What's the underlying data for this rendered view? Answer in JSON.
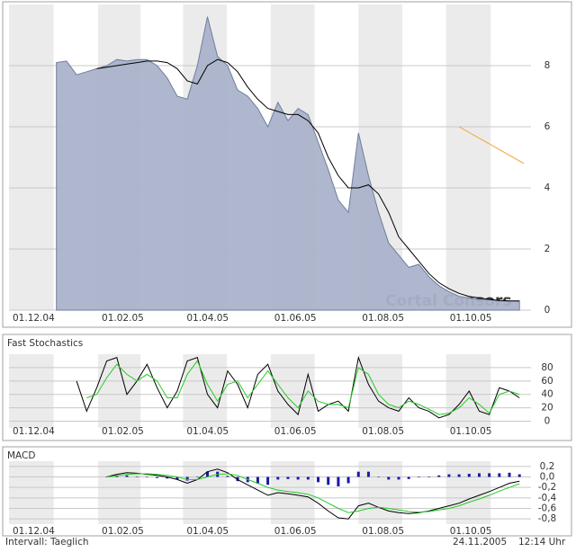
{
  "chart_data": [
    {
      "type": "area",
      "watermark": "Cortal Consors",
      "x": [
        "03.01.05",
        "10.01.05",
        "17.01.05",
        "24.01.05",
        "31.01.05",
        "07.02.05",
        "14.02.05",
        "21.02.05",
        "28.02.05",
        "07.03.05",
        "14.03.05",
        "21.03.05",
        "28.03.05",
        "04.04.05",
        "11.04.05",
        "18.04.05",
        "25.04.05",
        "02.05.05",
        "09.05.05",
        "16.05.05",
        "23.05.05",
        "30.05.05",
        "06.06.05",
        "13.06.05",
        "20.06.05",
        "27.06.05",
        "04.07.05",
        "11.07.05",
        "18.07.05",
        "25.07.05",
        "01.08.05",
        "08.08.05",
        "15.08.05",
        "22.08.05",
        "29.08.05",
        "05.09.05",
        "12.09.05",
        "19.09.05",
        "26.09.05",
        "03.10.05",
        "10.10.05",
        "17.10.05",
        "24.10.05",
        "31.10.05",
        "07.11.05",
        "14.11.05",
        "21.11.05"
      ],
      "series": [
        {
          "type": "area",
          "color": "#aab3ca",
          "line_color": "#6f7e9e",
          "values": [
            8.1,
            8.15,
            7.7,
            7.8,
            7.9,
            8.0,
            8.2,
            8.15,
            8.2,
            8.2,
            8.0,
            7.6,
            7.0,
            6.9,
            8.0,
            9.6,
            8.3,
            8.0,
            7.2,
            7.0,
            6.6,
            6.0,
            6.8,
            6.2,
            6.6,
            6.4,
            5.5,
            4.6,
            3.6,
            3.2,
            5.8,
            4.4,
            3.2,
            2.2,
            1.8,
            1.4,
            1.5,
            1.1,
            0.8,
            0.6,
            0.45,
            0.4,
            0.35,
            0.35,
            0.3,
            0.3,
            0.3
          ]
        },
        {
          "type": "line",
          "color": "#000000",
          "values": [
            null,
            null,
            null,
            null,
            7.9,
            7.95,
            8.0,
            8.05,
            8.1,
            8.15,
            8.15,
            8.1,
            7.9,
            7.5,
            7.4,
            8.0,
            8.2,
            8.1,
            7.8,
            7.3,
            6.9,
            6.6,
            6.5,
            6.4,
            6.4,
            6.2,
            5.8,
            5.0,
            4.4,
            4.0,
            4.0,
            4.1,
            3.8,
            3.2,
            2.4,
            2.0,
            1.6,
            1.2,
            0.9,
            0.7,
            0.55,
            0.45,
            0.4,
            0.35,
            0.32,
            0.3,
            0.3
          ]
        },
        {
          "type": "line",
          "color": "#f5a030",
          "x": [
            "10.10.05",
            "24.11.05"
          ],
          "values": [
            6.0,
            4.8
          ]
        }
      ],
      "xlim": [
        "01.12.04",
        "24.11.05"
      ],
      "xticks": [
        "01.12.04",
        "01.02.05",
        "01.04.05",
        "01.06.05",
        "01.08.05",
        "01.10.05"
      ],
      "ylim": [
        0,
        10
      ],
      "yticks": [
        0,
        2,
        4,
        6,
        8
      ],
      "grid": true
    },
    {
      "type": "line",
      "title": "Fast Stochastics",
      "x": [
        "03.01.05",
        "10.01.05",
        "17.01.05",
        "24.01.05",
        "31.01.05",
        "07.02.05",
        "14.02.05",
        "21.02.05",
        "28.02.05",
        "07.03.05",
        "14.03.05",
        "21.03.05",
        "28.03.05",
        "04.04.05",
        "11.04.05",
        "18.04.05",
        "25.04.05",
        "02.05.05",
        "09.05.05",
        "16.05.05",
        "23.05.05",
        "30.05.05",
        "06.06.05",
        "13.06.05",
        "20.06.05",
        "27.06.05",
        "04.07.05",
        "11.07.05",
        "18.07.05",
        "25.07.05",
        "01.08.05",
        "08.08.05",
        "15.08.05",
        "22.08.05",
        "29.08.05",
        "05.09.05",
        "12.09.05",
        "19.09.05",
        "26.09.05",
        "03.10.05",
        "10.10.05",
        "17.10.05",
        "24.10.05",
        "31.10.05",
        "07.11.05",
        "14.11.05",
        "21.11.05"
      ],
      "series": [
        {
          "color": "#000000",
          "values": [
            null,
            null,
            60,
            15,
            50,
            90,
            95,
            40,
            60,
            85,
            50,
            20,
            45,
            90,
            95,
            40,
            20,
            75,
            55,
            20,
            70,
            85,
            45,
            25,
            10,
            70,
            15,
            25,
            30,
            15,
            95,
            55,
            30,
            20,
            15,
            35,
            20,
            15,
            5,
            10,
            25,
            45,
            15,
            10,
            50,
            45,
            35
          ]
        },
        {
          "color": "#22cc22",
          "values": [
            null,
            null,
            null,
            35,
            40,
            65,
            85,
            70,
            60,
            70,
            60,
            35,
            35,
            70,
            90,
            55,
            30,
            55,
            60,
            35,
            55,
            75,
            55,
            35,
            20,
            45,
            30,
            25,
            25,
            20,
            80,
            70,
            40,
            25,
            20,
            30,
            25,
            18,
            10,
            12,
            20,
            35,
            25,
            12,
            40,
            45,
            40
          ]
        }
      ],
      "xlim": [
        "01.12.04",
        "24.11.05"
      ],
      "xticks": [
        "01.12.04",
        "01.02.05",
        "01.04.05",
        "01.06.05",
        "01.08.05",
        "01.10.05"
      ],
      "ylim": [
        -10,
        100
      ],
      "yticks": [
        0,
        20,
        40,
        60,
        80
      ],
      "grid": true
    },
    {
      "type": "line",
      "title": "MACD",
      "x": [
        "03.01.05",
        "10.01.05",
        "17.01.05",
        "24.01.05",
        "31.01.05",
        "07.02.05",
        "14.02.05",
        "21.02.05",
        "28.02.05",
        "07.03.05",
        "14.03.05",
        "21.03.05",
        "28.03.05",
        "04.04.05",
        "11.04.05",
        "18.04.05",
        "25.04.05",
        "02.05.05",
        "09.05.05",
        "16.05.05",
        "23.05.05",
        "30.05.05",
        "06.06.05",
        "13.06.05",
        "20.06.05",
        "27.06.05",
        "04.07.05",
        "11.07.05",
        "18.07.05",
        "25.07.05",
        "01.08.05",
        "08.08.05",
        "15.08.05",
        "22.08.05",
        "29.08.05",
        "05.09.05",
        "12.09.05",
        "19.09.05",
        "26.09.05",
        "03.10.05",
        "10.10.05",
        "17.10.05",
        "24.10.05",
        "31.10.05",
        "07.11.05",
        "14.11.05",
        "21.11.05"
      ],
      "series": [
        {
          "type": "bar",
          "color": "#1a1aa8",
          "values": [
            null,
            null,
            null,
            null,
            null,
            0.0,
            0.03,
            0.03,
            0.01,
            -0.01,
            -0.02,
            -0.03,
            -0.05,
            -0.07,
            0.0,
            0.1,
            0.1,
            0.02,
            -0.08,
            -0.1,
            -0.13,
            -0.15,
            -0.05,
            -0.04,
            -0.05,
            -0.05,
            -0.1,
            -0.15,
            -0.18,
            -0.12,
            0.1,
            0.1,
            0.0,
            -0.05,
            -0.05,
            -0.04,
            -0.01,
            0.01,
            0.03,
            0.05,
            0.05,
            0.06,
            0.07,
            0.07,
            0.07,
            0.08,
            0.05
          ]
        },
        {
          "color": "#000000",
          "values": [
            null,
            null,
            null,
            null,
            null,
            0.0,
            0.05,
            0.08,
            0.07,
            0.05,
            0.03,
            0.0,
            -0.05,
            -0.12,
            -0.05,
            0.1,
            0.15,
            0.08,
            -0.05,
            -0.15,
            -0.25,
            -0.35,
            -0.3,
            -0.32,
            -0.35,
            -0.38,
            -0.5,
            -0.65,
            -0.78,
            -0.8,
            -0.55,
            -0.5,
            -0.58,
            -0.65,
            -0.68,
            -0.7,
            -0.68,
            -0.65,
            -0.6,
            -0.55,
            -0.5,
            -0.42,
            -0.35,
            -0.28,
            -0.2,
            -0.12,
            -0.08
          ]
        },
        {
          "color": "#22cc22",
          "values": [
            null,
            null,
            null,
            null,
            null,
            0.0,
            0.02,
            0.05,
            0.06,
            0.06,
            0.05,
            0.03,
            0.0,
            -0.05,
            -0.05,
            0.0,
            0.05,
            0.06,
            0.03,
            -0.05,
            -0.12,
            -0.2,
            -0.25,
            -0.28,
            -0.3,
            -0.33,
            -0.4,
            -0.5,
            -0.6,
            -0.68,
            -0.65,
            -0.6,
            -0.58,
            -0.6,
            -0.63,
            -0.66,
            -0.67,
            -0.66,
            -0.63,
            -0.6,
            -0.55,
            -0.48,
            -0.42,
            -0.35,
            -0.27,
            -0.2,
            -0.13
          ]
        }
      ],
      "xlim": [
        "01.12.04",
        "24.11.05"
      ],
      "xticks": [
        "01.12.04",
        "01.02.05",
        "01.04.05",
        "01.06.05",
        "01.08.05",
        "01.10.05"
      ],
      "ylim": [
        -0.9,
        0.3
      ],
      "yticks": [
        {
          "value": 0.2,
          "label": "0,2"
        },
        {
          "value": 0,
          "label": "0,0"
        },
        {
          "value": -0.2,
          "label": "-0,2"
        },
        {
          "value": -0.4,
          "label": "-0,4"
        },
        {
          "value": -0.6,
          "label": "-0,6"
        },
        {
          "value": -0.8,
          "label": "-0,8"
        }
      ],
      "grid": true
    }
  ],
  "footer": {
    "interval": "Intervall: Taeglich",
    "date": "24.11.2005",
    "time": "12:14 Uhr"
  }
}
